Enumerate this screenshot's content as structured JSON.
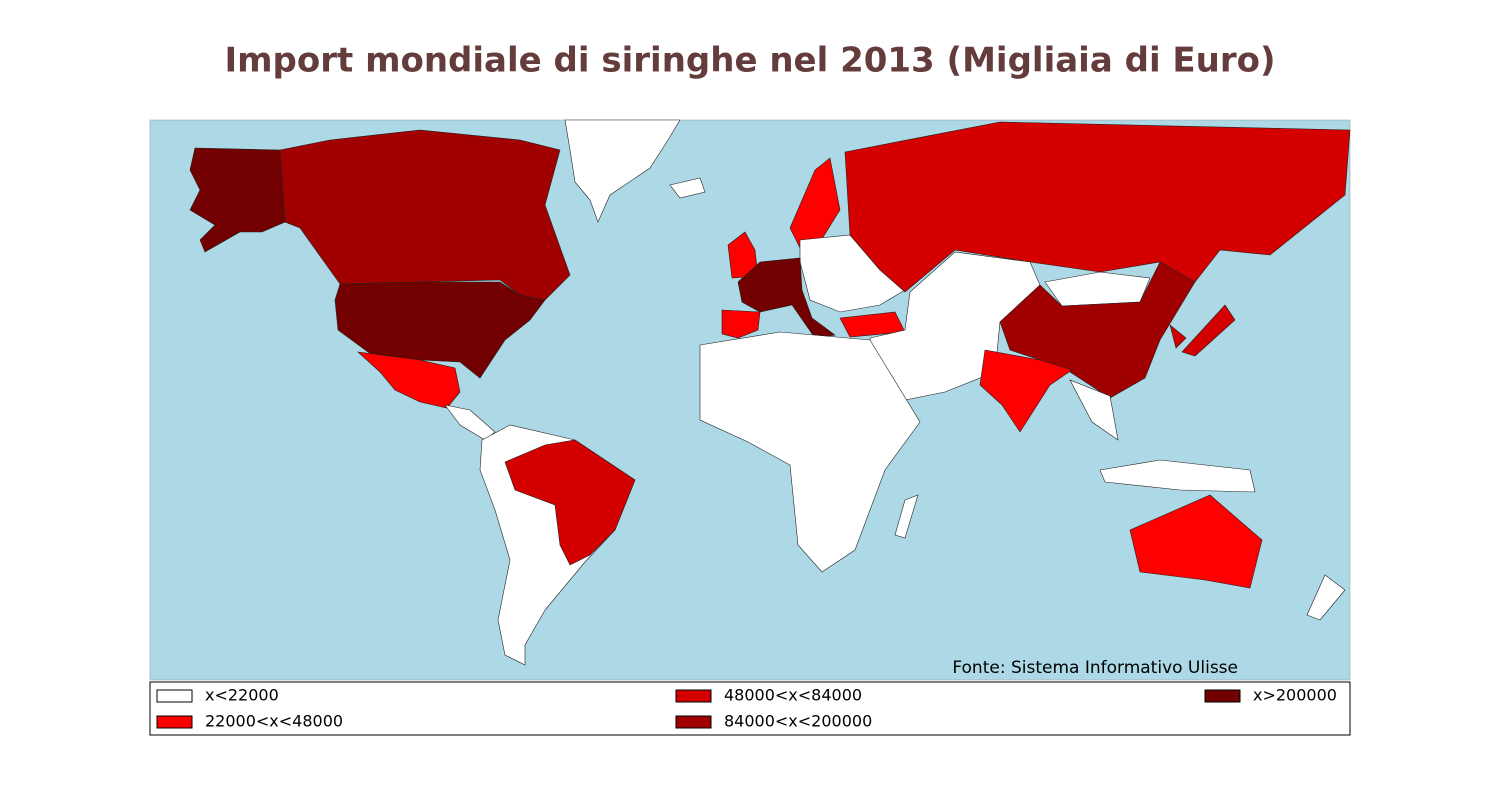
{
  "title": "Import mondiale di siringhe nel 2013 (Migliaia di Euro)",
  "source": "Fonte: Sistema Informativo Ulisse",
  "legend": [
    {
      "label": "x<22000",
      "color": "#ffffff"
    },
    {
      "label": "22000<x<48000",
      "color": "#ff0000"
    },
    {
      "label": "48000<x<84000",
      "color": "#d40000"
    },
    {
      "label": "84000<x<200000",
      "color": "#a00000"
    },
    {
      "label": "x>200000",
      "color": "#730000"
    }
  ]
}
